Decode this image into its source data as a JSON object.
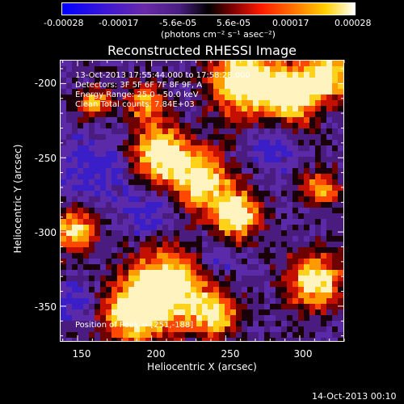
{
  "colorbar": {
    "tick_labels": [
      "-0.00028",
      "-0.00017",
      "-5.6e-05",
      "5.6e-05",
      "0.00017",
      "0.00028"
    ],
    "unit_label": "(photons cm⁻² s⁻¹ asec⁻²)"
  },
  "chart_data": {
    "type": "heatmap",
    "title": "Reconstructed RHESSI Image",
    "xlabel": "Heliocentric X (arcsec)",
    "ylabel": "Heliocentric Y (arcsec)",
    "xlim": [
      138,
      330
    ],
    "ylim": [
      -374,
      -184
    ],
    "x_ticks": [
      "150",
      "200",
      "250",
      "300"
    ],
    "y_ticks": [
      "-200",
      "-250",
      "-300",
      "-350"
    ],
    "color_range": [
      -0.00028,
      0.00028
    ],
    "annotations": {
      "time_range": "13-Oct-2013 17:55:44.000 to 17:58:28.000",
      "detectors": "Detectors: 3F 5F 6F 7F 8F 9F, A",
      "energy": "Energy Range: 25.0 - 50.0 keV",
      "clean": "Clean     Total counts: 7.84E+03",
      "peak": "Position of Peak = [251,-188]"
    },
    "peak_position": [
      251,
      -188
    ]
  },
  "footer": {
    "timestamp": "14-Oct-2013 00:10"
  }
}
